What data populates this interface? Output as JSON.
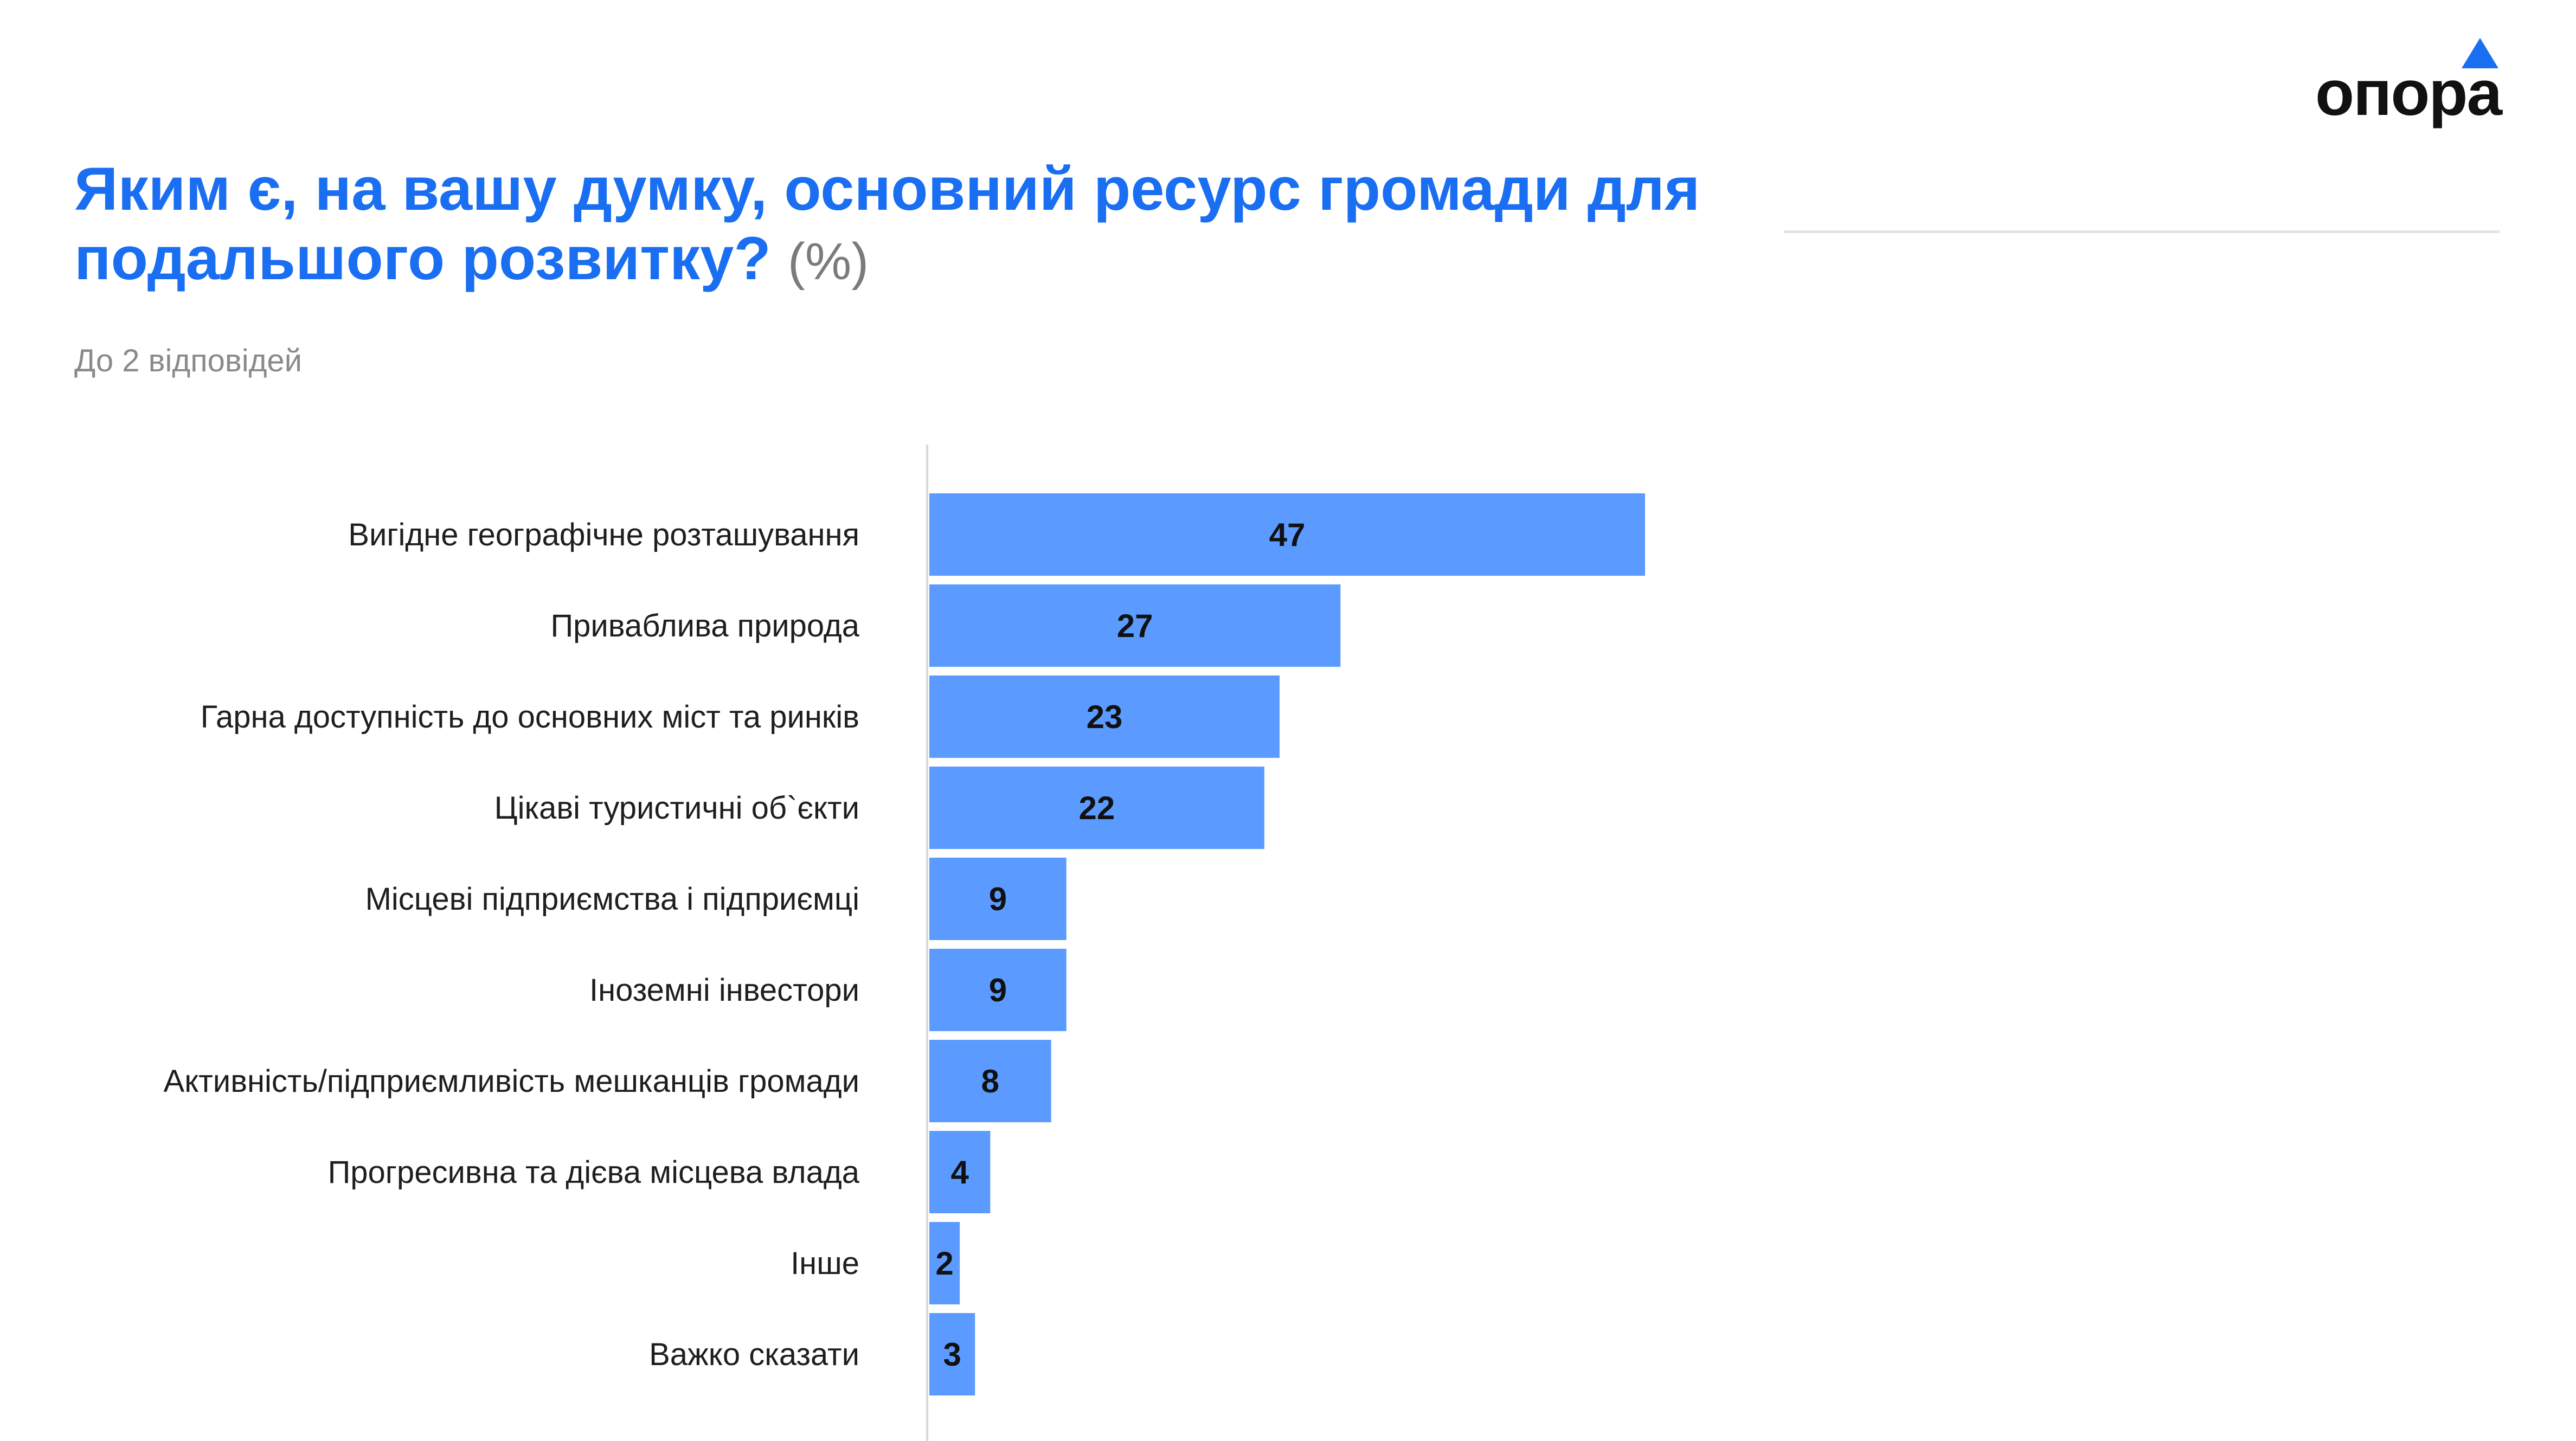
{
  "header": {
    "title": "Яким є, на вашу думку, основний ресурс громади для подальшого розвитку?",
    "unit": "(%)",
    "subtitle": "До 2 відповідей",
    "logo_text": "опора"
  },
  "colors": {
    "accent": "#1a6ef2",
    "bar": "#5b9bff",
    "axis": "#d9d9d9"
  },
  "chart_data": {
    "type": "bar",
    "orientation": "horizontal",
    "categories": [
      "Вигідне географічне розташування",
      "Приваблива природа",
      "Гарна доступність до основних міст та ринків",
      "Цікаві туристичні об`єкти",
      "Місцеві підприємства і підприємці",
      "Іноземні інвестори",
      "Активність/підприємливість мешканців громади",
      "Прогресивна та дієва місцева влада",
      "Інше",
      "Важко сказати"
    ],
    "values": [
      47,
      27,
      23,
      22,
      9,
      9,
      8,
      4,
      2,
      3
    ],
    "xlim": [
      0,
      47
    ],
    "grid": false,
    "data_labels": true
  }
}
